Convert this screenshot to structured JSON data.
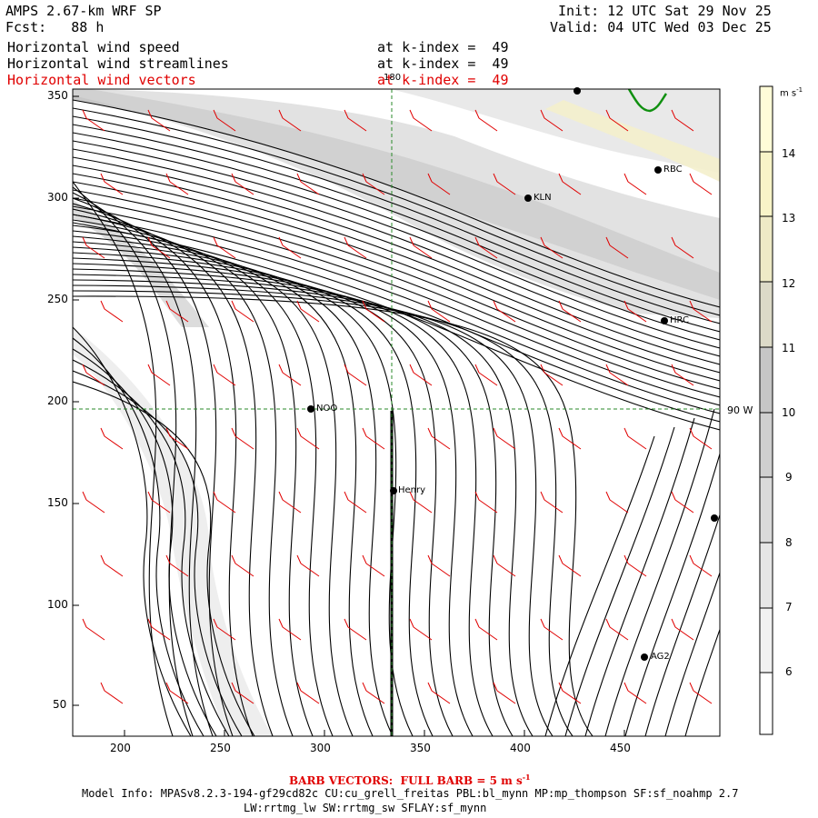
{
  "header": {
    "model": "AMPS 2.67-km WRF SP",
    "forecast": "Fcst:   88 h",
    "init": "Init: 12 UTC Sat 29 Nov 25",
    "valid": "Valid: 04 UTC Wed 03 Dec 25"
  },
  "layers": [
    {
      "label": "Horizontal wind speed",
      "k": "at k-index =  49"
    },
    {
      "label": "Horizontal wind streamlines",
      "k": "at k-index =  49"
    },
    {
      "label": "Horizontal wind vectors",
      "k": "at k-index =  49"
    }
  ],
  "axes": {
    "x_ticks": [
      "200",
      "250",
      "300",
      "350",
      "400",
      "450"
    ],
    "y_ticks": [
      "350",
      "300",
      "250",
      "200",
      "150",
      "100",
      "50"
    ]
  },
  "map": {
    "meridian_label": "180",
    "parallel_label": "90 W",
    "stations": [
      {
        "name": "RBC"
      },
      {
        "name": "KLN"
      },
      {
        "name": "HRC"
      },
      {
        "name": "NOO"
      },
      {
        "name": "Henry"
      },
      {
        "name": "AG2"
      }
    ]
  },
  "colorbar": {
    "unit": "m s",
    "unit_exp": "-1",
    "labels": [
      "14",
      "13",
      "12",
      "11",
      "10",
      "9",
      "8",
      "7",
      "6"
    ]
  },
  "footer": {
    "barb": "BARB VECTORS:  FULL BARB = 5 m s",
    "barb_exp": "-1",
    "model_info": "Model Info: MPASv8.2.3-194-gf29cd82c CU:cu_grell_freitas PBL:bl_mynn MP:mp_thompson SF:sf_noahmp 2.7",
    "physics": "LW:rrtmg_lw SW:rrtmg_sw SFLAY:sf_mynn"
  },
  "colors": {
    "barb": "#e00000",
    "streamline": "#000000",
    "grid": "#2a8a2a",
    "coast": "#109010"
  }
}
